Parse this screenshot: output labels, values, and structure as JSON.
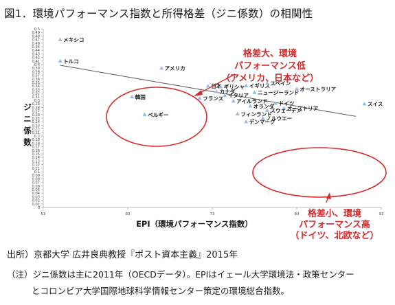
{
  "title": "図1．環境パフォーマンス指数と所得格差（ジニ係数）の相関性",
  "source": "出所）京都大学 広井良典教授『ポスト資本主義』2015年",
  "note_line1": "（注）ジニ係数は主に2011年（OECDデータ）。EPIはイェール大学環境法・政策センター",
  "note_line2": "とコロンビア大学国際地球科学情報センター策定の環境総合指数。",
  "callouts": {
    "high": {
      "line1": "格差大、環境",
      "line2": "パフォーマンス低",
      "line3": "（アメリカ、日本など）"
    },
    "low": {
      "line1": "格差小、環境",
      "line2": "パフォーマンス高",
      "line3": "（ドイツ、北欧など）"
    }
  },
  "colors": {
    "callout": "#d42a2a",
    "marker": "#9fb7d8",
    "trendline": "#555555",
    "axis": "#bfbfbf"
  },
  "chart_data": {
    "type": "scatter",
    "title": "",
    "xlabel": "EPI（環境パフォーマンス指数）",
    "ylabel": "ジニ係数",
    "xlim": [
      53,
      93
    ],
    "ylim": [
      0,
      0.5
    ],
    "x_ticks": [
      53,
      63,
      73,
      83,
      93
    ],
    "y_ticks": [
      0,
      0.01,
      0.02,
      0.03,
      0.04,
      0.05,
      0.06,
      0.07,
      0.08,
      0.09,
      0.1,
      0.11,
      0.12,
      0.13,
      0.14,
      0.15,
      0.16,
      0.17,
      0.18,
      0.19,
      0.2,
      0.21,
      0.22,
      0.23,
      0.24,
      0.25,
      0.26,
      0.27,
      0.28,
      0.29,
      0.3,
      0.31,
      0.32,
      0.33,
      0.34,
      0.35,
      0.36,
      0.37,
      0.38,
      0.39,
      0.4,
      0.41,
      0.42,
      0.43,
      0.44,
      0.45,
      0.46,
      0.47,
      0.48,
      0.49,
      0.5
    ],
    "grid": false,
    "points": [
      {
        "label": "メキシコ",
        "x": 55.0,
        "y": 0.47
      },
      {
        "label": "トルコ",
        "x": 55.0,
        "y": 0.41
      },
      {
        "label": "アメリカ",
        "x": 67.0,
        "y": 0.39
      },
      {
        "label": "日本",
        "x": 72.5,
        "y": 0.34
      },
      {
        "label": "ギリシャ",
        "x": 74.0,
        "y": 0.338
      },
      {
        "label": "カナダ",
        "x": 73.5,
        "y": 0.325
      },
      {
        "label": "イタリア",
        "x": 74.5,
        "y": 0.314
      },
      {
        "label": "韓国",
        "x": 63.5,
        "y": 0.31
      },
      {
        "label": "フランス",
        "x": 71.5,
        "y": 0.306
      },
      {
        "label": "アイルランド",
        "x": 75.5,
        "y": 0.298
      },
      {
        "label": "イギリス",
        "x": 77.0,
        "y": 0.341
      },
      {
        "label": "スペイン",
        "x": 79.5,
        "y": 0.348
      },
      {
        "label": "オーストラリア",
        "x": 83.0,
        "y": 0.332
      },
      {
        "label": "ニュージーランド",
        "x": 78.0,
        "y": 0.322
      },
      {
        "label": "ドイツ",
        "x": 80.5,
        "y": 0.292
      },
      {
        "label": "オランダ",
        "x": 77.5,
        "y": 0.284
      },
      {
        "label": "オーストリア",
        "x": 81.5,
        "y": 0.278
      },
      {
        "label": "スウェーデン",
        "x": 79.5,
        "y": 0.272
      },
      {
        "label": "フィンランド",
        "x": 76.0,
        "y": 0.262
      },
      {
        "label": "ノルウエー",
        "x": 79.0,
        "y": 0.25
      },
      {
        "label": "デンマーク",
        "x": 77.0,
        "y": 0.24
      },
      {
        "label": "ベルギー",
        "x": 65.0,
        "y": 0.26
      },
      {
        "label": "スイス",
        "x": 91.0,
        "y": 0.29
      }
    ],
    "trendline": {
      "x": [
        55,
        90
      ],
      "y": [
        0.398,
        0.255
      ]
    }
  }
}
